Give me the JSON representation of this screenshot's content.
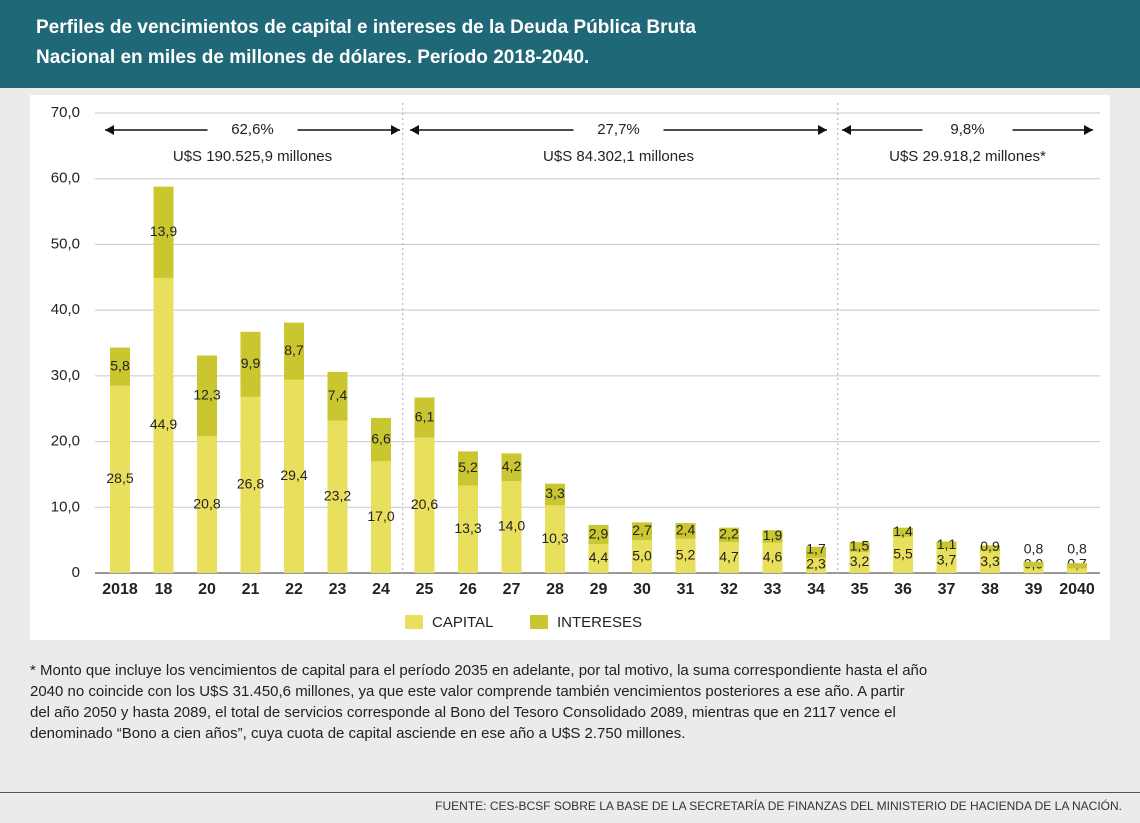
{
  "chart_data": {
    "type": "stacked-bar",
    "title": [
      "Perfiles de vencimientos de capital e intereses de la Deuda Pública Bruta",
      "Nacional en miles de millones de dólares. Período 2018-2040."
    ],
    "categories": [
      "2018",
      "18",
      "20",
      "21",
      "22",
      "23",
      "24",
      "25",
      "26",
      "27",
      "28",
      "29",
      "30",
      "31",
      "32",
      "33",
      "34",
      "35",
      "36",
      "37",
      "38",
      "39",
      "2040"
    ],
    "series": [
      {
        "name": "CAPITAL",
        "color": "#e8df5c",
        "values": [
          28.5,
          44.9,
          20.8,
          26.8,
          29.4,
          23.2,
          17.0,
          20.6,
          13.3,
          14.0,
          10.3,
          4.4,
          5.0,
          5.2,
          4.7,
          4.6,
          2.3,
          3.2,
          5.5,
          3.7,
          3.3,
          0.9,
          0.7
        ],
        "value_labels": [
          "28,5",
          "44,9",
          "20,8",
          "26,8",
          "29,4",
          "23,2",
          "17,0",
          "20,6",
          "13,3",
          "14,0",
          "10,3",
          "4,4",
          "5,0",
          "5,2",
          "4,7",
          "4,6",
          "2,3",
          "3,2",
          "5,5",
          "3,7",
          "3,3",
          "0,9",
          "0,7"
        ]
      },
      {
        "name": "INTERESES",
        "color": "#c9c62f",
        "values": [
          5.8,
          13.9,
          12.3,
          9.9,
          8.7,
          7.4,
          6.6,
          6.1,
          5.2,
          4.2,
          3.3,
          2.9,
          2.7,
          2.4,
          2.2,
          1.9,
          1.7,
          1.5,
          1.4,
          1.1,
          0.9,
          0.8,
          0.8
        ],
        "value_labels": [
          "5,8",
          "13,9",
          "12,3",
          "9,9",
          "8,7",
          "7,4",
          "6,6",
          "6,1",
          "5,2",
          "4,2",
          "3,3",
          "2,9",
          "2,7",
          "2,4",
          "2,2",
          "1,9",
          "1,7",
          "1,5",
          "1,4",
          "1,1",
          "0,9",
          "0,8",
          "0,8"
        ]
      }
    ],
    "ylim": [
      0,
      70
    ],
    "yticks": [
      0,
      {
        "value": 10,
        "label": "10,0"
      },
      {
        "value": 20,
        "label": "20,0"
      },
      {
        "value": 30,
        "label": "30,0"
      },
      {
        "value": 40,
        "label": "40,0"
      },
      {
        "value": 50,
        "label": "50,0"
      },
      {
        "value": 60,
        "label": "60,0"
      },
      {
        "value": 70,
        "label": "70,0"
      }
    ],
    "grid": true,
    "annotations": [
      {
        "percent": "62,6%",
        "amount": "U$S 190.525,9 millones"
      },
      {
        "percent": "27,7%",
        "amount": "U$S 84.302,1 millones"
      },
      {
        "percent": "9,8%",
        "amount": "U$S 29.918,2 millones*"
      }
    ],
    "footnote": [
      "* Monto que incluye los vencimientos de capital para el período 2035 en adelante, por tal motivo, la suma correspondiente hasta el año",
      "2040 no coincide con los U$S 31.450,6 millones, ya que este valor comprende también vencimientos posteriores a ese año. A partir",
      "del año 2050 y hasta 2089, el total de servicios corresponde al Bono del Tesoro Consolidado 2089, mientras que en 2117 vence el",
      "denominado “Bono a cien años”, cuya cuota de capital asciende en ese año a U$S 2.750 millones."
    ],
    "source": "FUENTE: CES-BCSF SOBRE LA BASE DE LA SECRETARÍA DE FINANZAS DEL MINISTERIO DE HACIENDA DE LA NACIÓN."
  }
}
